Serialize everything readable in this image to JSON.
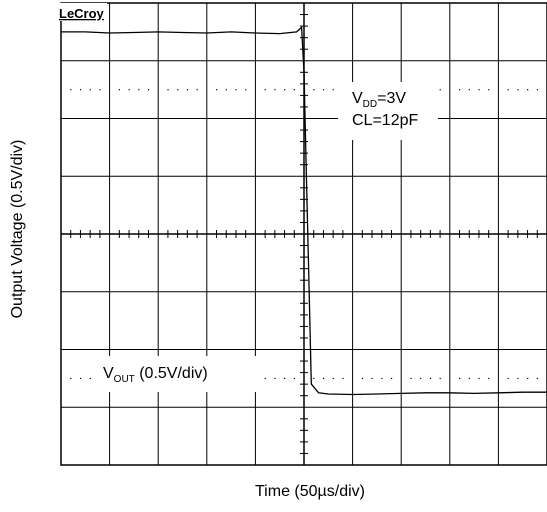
{
  "brand": "LeCroy",
  "chart_data": {
    "type": "line",
    "title": "",
    "xlabel": "Time (50µs/div)",
    "ylabel": "Output Voltage (0.5V/div)",
    "grid": true,
    "divisions": {
      "x": 10,
      "y": 8
    },
    "xlim": [
      -5,
      5
    ],
    "ylim": [
      -4,
      4
    ],
    "annotations": {
      "vdd_main": "V",
      "vdd_sub": "DD",
      "vdd_value": "=3V",
      "cl": "CL=12pF",
      "vout_main": "V",
      "vout_sub": "OUT",
      "vout_value": " (0.5V/div)"
    },
    "series": [
      {
        "x": [
          -5,
          -4.5,
          -4,
          -3.5,
          -3,
          -2.5,
          -2,
          -1.5,
          -1,
          -0.5,
          -0.15,
          -0.05,
          0,
          0.05,
          0.1,
          0.15,
          0.3,
          0.5,
          1,
          1.5,
          2,
          2.5,
          3,
          3.5,
          4,
          4.5,
          5
        ],
        "y": [
          3.5,
          3.5,
          3.48,
          3.49,
          3.5,
          3.49,
          3.48,
          3.5,
          3.48,
          3.47,
          3.5,
          3.58,
          2.8,
          1.0,
          -0.8,
          -2.6,
          -2.75,
          -2.77,
          -2.78,
          -2.77,
          -2.76,
          -2.75,
          -2.75,
          -2.76,
          -2.75,
          -2.74,
          -2.74
        ]
      }
    ]
  }
}
